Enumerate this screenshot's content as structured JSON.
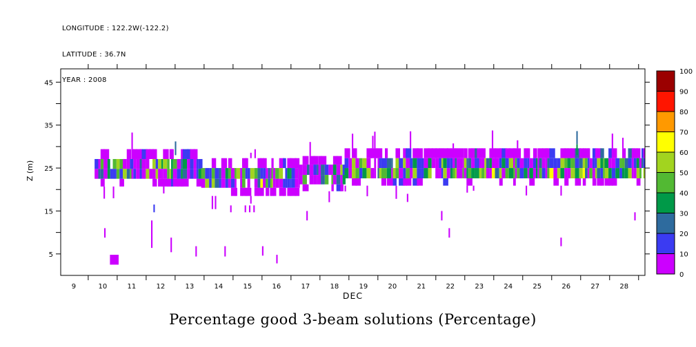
{
  "metadata": {
    "longitude": "LONGITUDE : 122.2W(-122.2)",
    "latitude": "LATITUDE : 36.7N",
    "year": "YEAR : 2008"
  },
  "chart_data": {
    "type": "heatmap",
    "title": "Percentage good 3-beam solutions (Percentage)",
    "xlabel": "DEC",
    "ylabel": "Z (m)",
    "x_range": [
      8.55,
      28.72
    ],
    "y_range": [
      0,
      48.1
    ],
    "x_ticks": [
      9,
      10,
      11,
      12,
      13,
      14,
      15,
      16,
      17,
      18,
      19,
      20,
      21,
      22,
      23,
      24,
      25,
      26,
      27,
      28
    ],
    "y_tick_step": 5,
    "y_tick_labels": [
      5,
      15,
      25,
      35,
      45
    ],
    "grid": false,
    "legend_position": "right-colorbar",
    "colorbar": {
      "ticks": [
        0,
        10,
        20,
        30,
        40,
        50,
        60,
        70,
        80,
        90,
        100
      ],
      "colors": [
        "#CC00FF",
        "#3B3BF2",
        "#2E6B9E",
        "#009948",
        "#52B933",
        "#A2D41F",
        "#FFFF00",
        "#FF9900",
        "#FF1500",
        "#9B0000"
      ]
    },
    "render_seed": 20081209,
    "band_segments": [
      {
        "d0": 9.72,
        "d1": 13.4,
        "spike_up": 0.06,
        "spike_dn": 0.07,
        "rows": [
          {
            "z0": 27.1,
            "z1": 29.4,
            "density": 0.5,
            "wmult": 1.4,
            "palette": [
              [
                0,
                0.88
              ],
              [
                1,
                0.08
              ],
              [
                2,
                0.04
              ]
            ]
          },
          {
            "z0": 24.8,
            "z1": 27.1,
            "density": 0.96,
            "wmult": 1.0,
            "palette": [
              [
                0,
                0.3
              ],
              [
                1,
                0.24
              ],
              [
                2,
                0.1
              ],
              [
                3,
                0.12
              ],
              [
                4,
                0.14
              ],
              [
                5,
                0.08
              ],
              [
                6,
                0.02
              ]
            ]
          },
          {
            "z0": 22.5,
            "z1": 24.8,
            "density": 0.96,
            "wmult": 1.0,
            "palette": [
              [
                0,
                0.34
              ],
              [
                1,
                0.2
              ],
              [
                2,
                0.08
              ],
              [
                3,
                0.14
              ],
              [
                4,
                0.14
              ],
              [
                5,
                0.08
              ],
              [
                6,
                0.02
              ]
            ]
          },
          {
            "z0": 20.7,
            "z1": 22.5,
            "density": 0.55,
            "wmult": 1.4,
            "palette": [
              [
                0,
                0.9
              ],
              [
                1,
                0.1
              ]
            ]
          }
        ]
      },
      {
        "d0": 13.4,
        "d1": 16.75,
        "spike_up": 0.05,
        "spike_dn": 0.09,
        "rows": [
          {
            "z0": 25.0,
            "z1": 27.3,
            "density": 0.42,
            "wmult": 1.4,
            "palette": [
              [
                0,
                0.9
              ],
              [
                1,
                0.1
              ]
            ]
          },
          {
            "z0": 22.5,
            "z1": 25.0,
            "density": 0.95,
            "wmult": 1.0,
            "palette": [
              [
                0,
                0.32
              ],
              [
                1,
                0.22
              ],
              [
                2,
                0.08
              ],
              [
                3,
                0.12
              ],
              [
                4,
                0.14
              ],
              [
                5,
                0.1
              ],
              [
                6,
                0.02
              ]
            ]
          },
          {
            "z0": 20.4,
            "z1": 22.5,
            "density": 0.95,
            "wmult": 1.0,
            "palette": [
              [
                0,
                0.36
              ],
              [
                1,
                0.2
              ],
              [
                2,
                0.06
              ],
              [
                3,
                0.12
              ],
              [
                4,
                0.14
              ],
              [
                5,
                0.1
              ],
              [
                6,
                0.02
              ]
            ]
          },
          {
            "z0": 18.5,
            "z1": 20.4,
            "density": 0.6,
            "wmult": 1.4,
            "palette": [
              [
                0,
                0.92
              ],
              [
                1,
                0.08
              ]
            ]
          }
        ]
      },
      {
        "d0": 16.75,
        "d1": 18.35,
        "spike_up": 0.05,
        "spike_dn": 0.06,
        "rows": [
          {
            "z0": 25.8,
            "z1": 27.8,
            "density": 0.4,
            "wmult": 1.4,
            "palette": [
              [
                0,
                0.9
              ],
              [
                1,
                0.1
              ]
            ]
          },
          {
            "z0": 23.4,
            "z1": 25.8,
            "density": 0.9,
            "wmult": 1.0,
            "palette": [
              [
                0,
                0.34
              ],
              [
                1,
                0.22
              ],
              [
                2,
                0.1
              ],
              [
                3,
                0.12
              ],
              [
                4,
                0.12
              ],
              [
                5,
                0.08
              ],
              [
                6,
                0.02
              ]
            ]
          },
          {
            "z0": 21.2,
            "z1": 23.4,
            "density": 0.85,
            "wmult": 1.0,
            "palette": [
              [
                0,
                0.4
              ],
              [
                1,
                0.2
              ],
              [
                2,
                0.08
              ],
              [
                3,
                0.12
              ],
              [
                4,
                0.12
              ],
              [
                5,
                0.08
              ]
            ]
          },
          {
            "z0": 19.6,
            "z1": 21.2,
            "density": 0.4,
            "wmult": 1.4,
            "palette": [
              [
                0,
                0.92
              ],
              [
                1,
                0.08
              ]
            ]
          }
        ]
      },
      {
        "d0": 18.35,
        "d1": 28.72,
        "spike_up": 0.07,
        "spike_dn": 0.05,
        "rows": [
          {
            "z0": 27.3,
            "z1": 29.6,
            "density": 0.72,
            "wmult": 1.4,
            "palette": [
              [
                0,
                0.86
              ],
              [
                1,
                0.1
              ],
              [
                2,
                0.04
              ]
            ]
          },
          {
            "z0": 25.0,
            "z1": 27.3,
            "density": 0.98,
            "wmult": 1.0,
            "palette": [
              [
                0,
                0.26
              ],
              [
                1,
                0.26
              ],
              [
                2,
                0.13
              ],
              [
                3,
                0.13
              ],
              [
                4,
                0.13
              ],
              [
                5,
                0.08
              ],
              [
                6,
                0.01
              ]
            ]
          },
          {
            "z0": 22.6,
            "z1": 25.0,
            "density": 0.98,
            "wmult": 1.0,
            "palette": [
              [
                0,
                0.2
              ],
              [
                1,
                0.16
              ],
              [
                2,
                0.1
              ],
              [
                3,
                0.16
              ],
              [
                4,
                0.18
              ],
              [
                5,
                0.16
              ],
              [
                6,
                0.04
              ]
            ]
          },
          {
            "z0": 20.9,
            "z1": 22.6,
            "density": 0.42,
            "wmult": 1.4,
            "palette": [
              [
                0,
                0.85
              ],
              [
                1,
                0.15
              ]
            ]
          }
        ]
      }
    ],
    "isolated_marks": [
      {
        "d": 10.05,
        "z0": 8.8,
        "z1": 11.0,
        "bin": 0
      },
      {
        "d": 10.25,
        "z0": 2.5,
        "z1": 4.8,
        "w": 0.3,
        "bin": 0
      },
      {
        "d": 11.67,
        "z0": 6.4,
        "z1": 12.8,
        "bin": 0
      },
      {
        "d": 11.75,
        "z0": 14.7,
        "z1": 16.5,
        "bin": 1
      },
      {
        "d": 12.34,
        "z0": 5.4,
        "z1": 8.8,
        "bin": 0
      },
      {
        "d": 13.2,
        "z0": 4.4,
        "z1": 6.8,
        "bin": 0
      },
      {
        "d": 14.2,
        "z0": 4.4,
        "z1": 6.8,
        "bin": 0
      },
      {
        "d": 14.4,
        "z0": 14.7,
        "z1": 16.3,
        "bin": 0
      },
      {
        "d": 14.9,
        "z0": 14.7,
        "z1": 16.3,
        "bin": 0
      },
      {
        "d": 15.05,
        "z0": 14.7,
        "z1": 16.3,
        "bin": 0
      },
      {
        "d": 15.2,
        "z0": 14.7,
        "z1": 16.3,
        "bin": 0
      },
      {
        "d": 15.5,
        "z0": 4.6,
        "z1": 6.8,
        "bin": 0
      },
      {
        "d": 15.99,
        "z0": 2.8,
        "z1": 4.8,
        "bin": 0
      },
      {
        "d": 17.03,
        "z0": 12.8,
        "z1": 15.0,
        "bin": 0
      },
      {
        "d": 20.5,
        "z0": 17.1,
        "z1": 19.0,
        "bin": 0
      },
      {
        "d": 21.68,
        "z0": 12.8,
        "z1": 15.0,
        "bin": 0
      },
      {
        "d": 21.94,
        "z0": 8.8,
        "z1": 11.0,
        "bin": 0
      },
      {
        "d": 25.8,
        "z0": 6.8,
        "z1": 8.8,
        "bin": 0
      },
      {
        "d": 28.35,
        "z0": 12.8,
        "z1": 14.7,
        "bin": 0
      }
    ],
    "special_spikes": [
      {
        "d": 12.49,
        "z0": 28.0,
        "z1": 31.2,
        "bin": 2
      },
      {
        "d": 18.6,
        "z0": 29.6,
        "z1": 33.0,
        "bin": 0
      },
      {
        "d": 19.3,
        "z0": 29.6,
        "z1": 32.5,
        "bin": 0
      },
      {
        "d": 26.35,
        "z0": 30.5,
        "z1": 33.6,
        "bin": 2
      },
      {
        "d": 26.35,
        "z0": 28.0,
        "z1": 30.5,
        "bin": 3
      }
    ]
  }
}
